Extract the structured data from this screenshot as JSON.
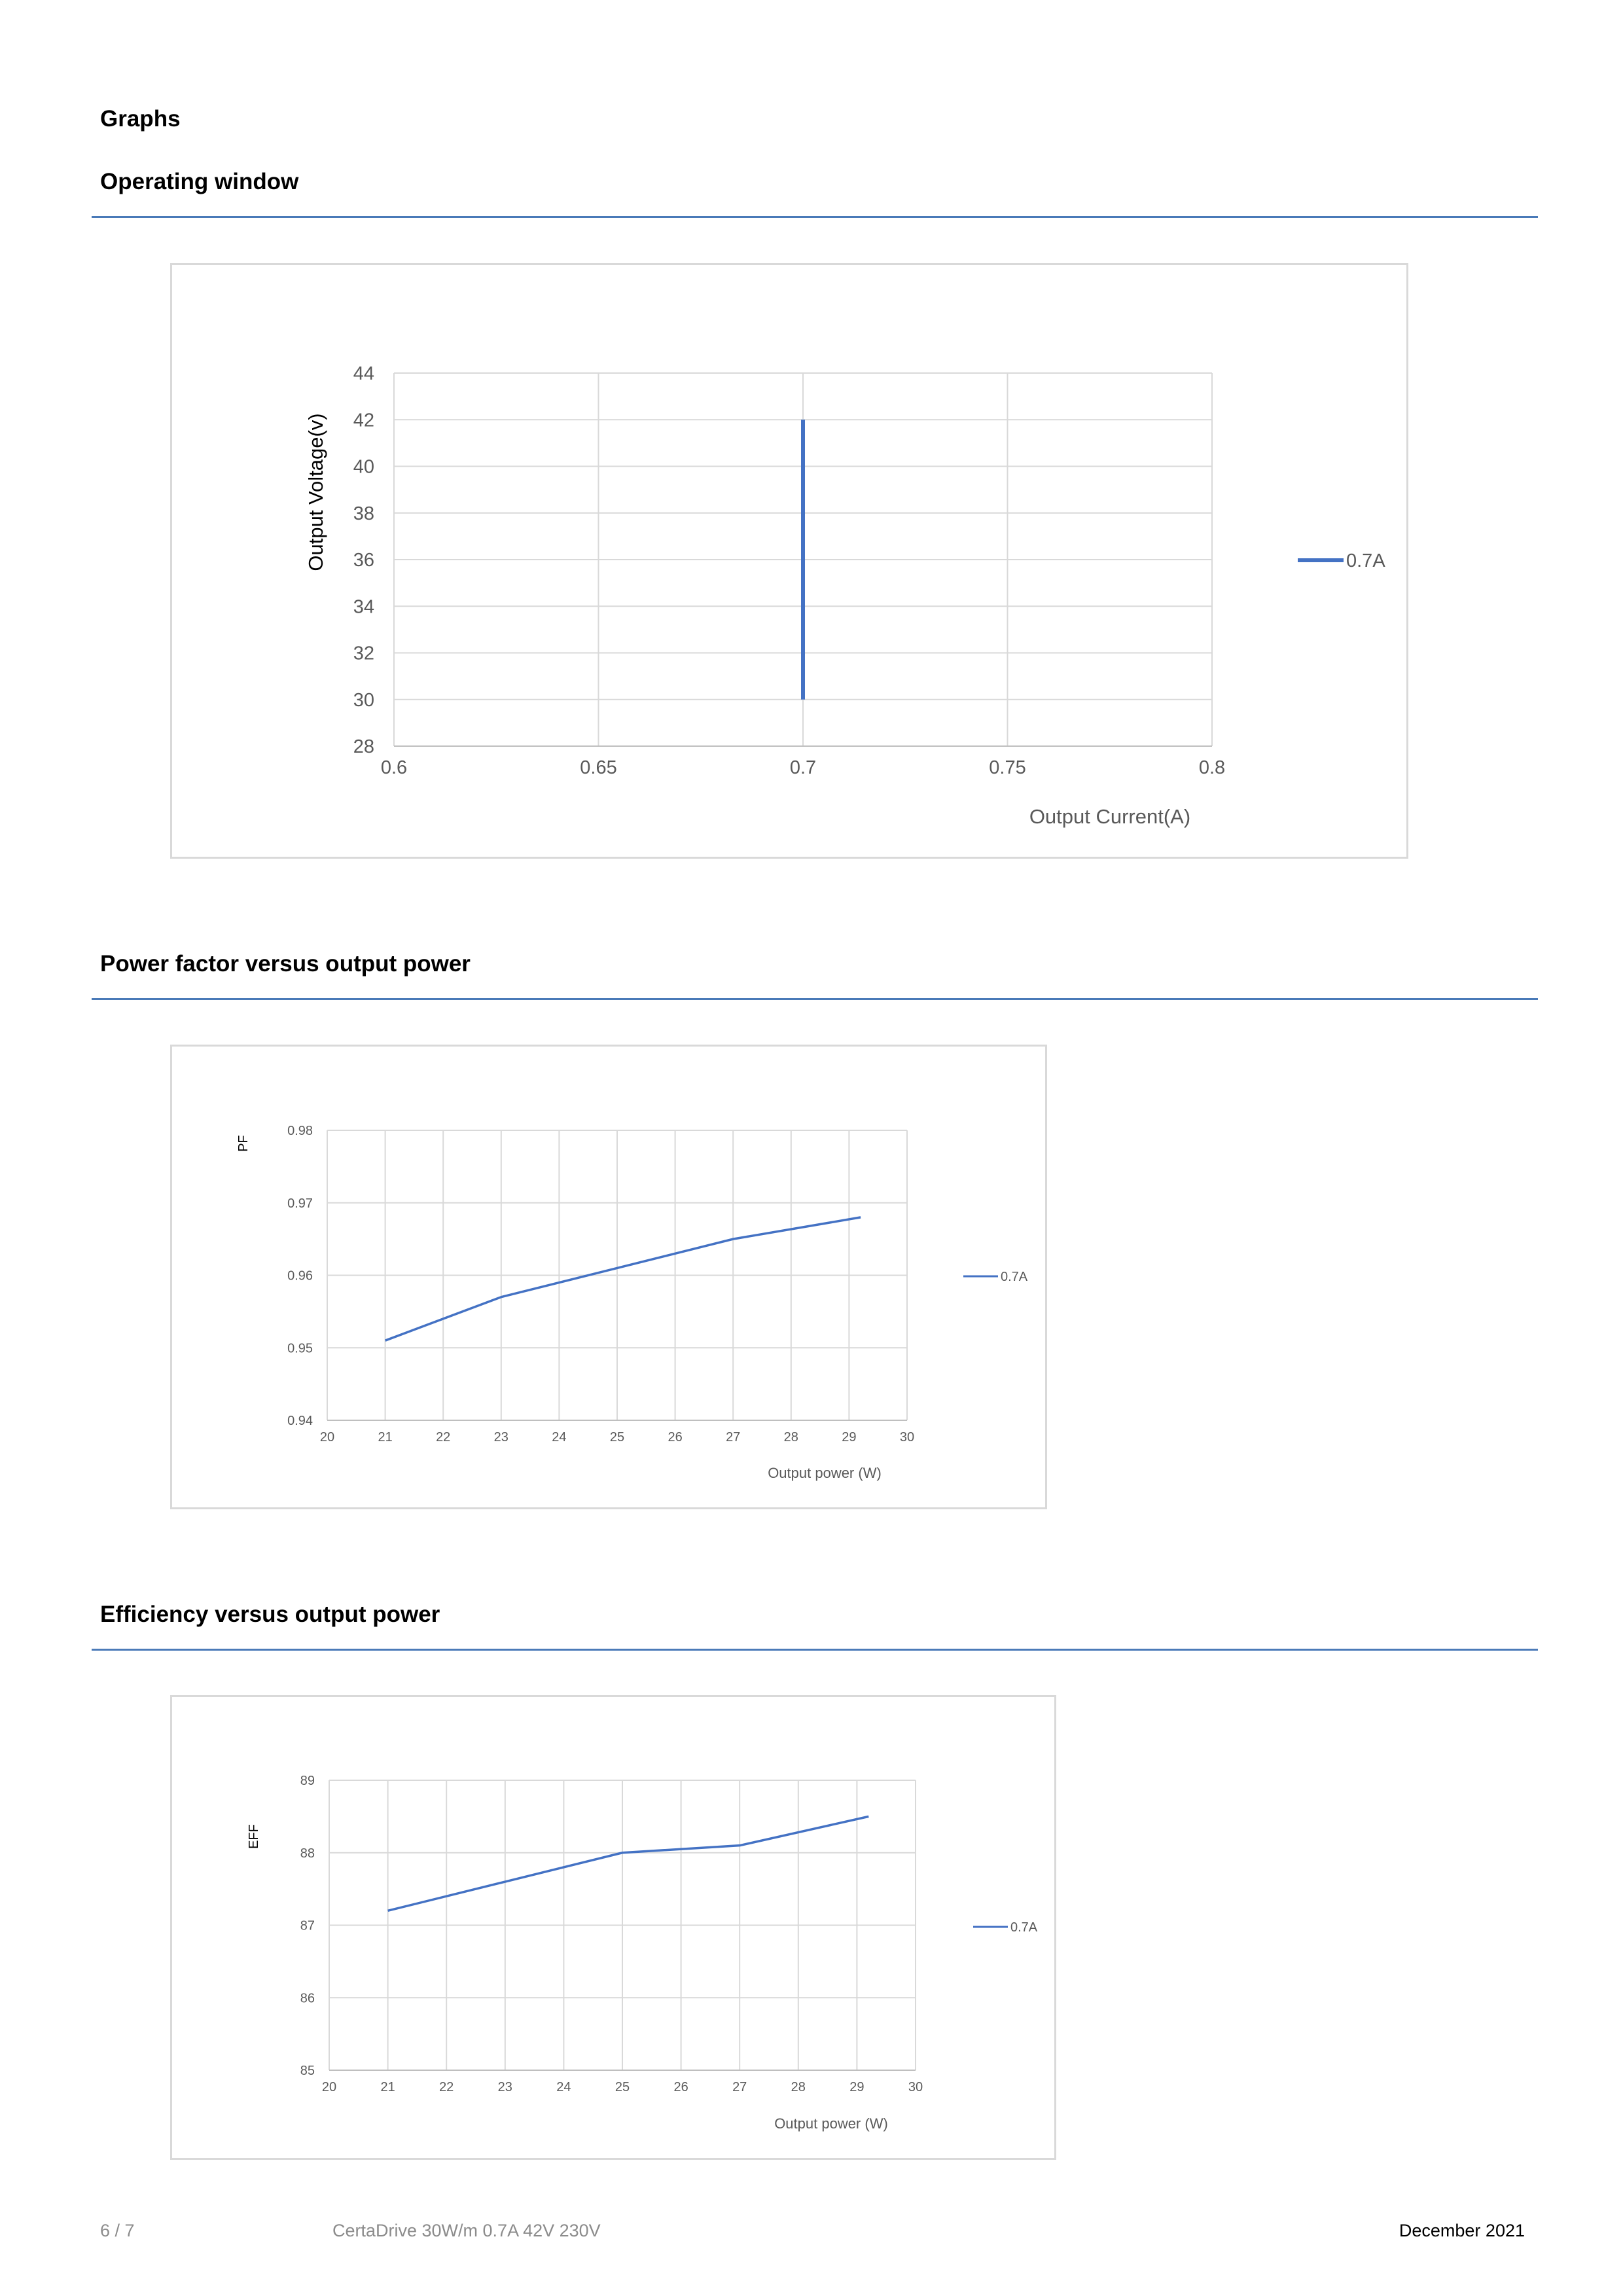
{
  "page": {
    "heading": "Graphs",
    "sections": [
      {
        "title": "Operating window"
      },
      {
        "title": "Power factor versus output power"
      },
      {
        "title": "Efficiency versus output power"
      }
    ]
  },
  "chart_data": [
    {
      "type": "line",
      "title": "",
      "xlabel": "Output Current(A)",
      "ylabel": "Output Voltage(v)",
      "xlim": [
        0.6,
        0.8
      ],
      "ylim": [
        28,
        44
      ],
      "xticks": [
        "0.6",
        "0.65",
        "0.7",
        "0.75",
        "0.8"
      ],
      "yticks": [
        "28",
        "30",
        "32",
        "34",
        "36",
        "38",
        "40",
        "42",
        "44"
      ],
      "grid": true,
      "legend_position": "right",
      "series": [
        {
          "name": "0.7A",
          "color": "#4472c4",
          "points": [
            [
              0.7,
              30
            ],
            [
              0.7,
              42
            ]
          ]
        }
      ]
    },
    {
      "type": "line",
      "title": "",
      "xlabel": "Output power (W)",
      "ylabel": "PF",
      "xlim": [
        20,
        30
      ],
      "ylim": [
        0.94,
        0.98
      ],
      "xticks": [
        "20",
        "21",
        "22",
        "23",
        "24",
        "25",
        "26",
        "27",
        "28",
        "29",
        "30"
      ],
      "yticks": [
        "0.94",
        "0.95",
        "0.96",
        "0.97",
        "0.98"
      ],
      "grid": true,
      "legend_position": "right",
      "series": [
        {
          "name": "0.7A",
          "color": "#4472c4",
          "points": [
            [
              21,
              0.951
            ],
            [
              23,
              0.957
            ],
            [
              25,
              0.961
            ],
            [
              27,
              0.965
            ],
            [
              29.2,
              0.968
            ]
          ]
        }
      ]
    },
    {
      "type": "line",
      "title": "",
      "xlabel": "Output power (W)",
      "ylabel": "EFF",
      "xlim": [
        20,
        30
      ],
      "ylim": [
        85,
        89
      ],
      "xticks": [
        "20",
        "21",
        "22",
        "23",
        "24",
        "25",
        "26",
        "27",
        "28",
        "29",
        "30"
      ],
      "yticks": [
        "85",
        "86",
        "87",
        "88",
        "89"
      ],
      "grid": true,
      "legend_position": "right",
      "series": [
        {
          "name": "0.7A",
          "color": "#4472c4",
          "points": [
            [
              21,
              87.2
            ],
            [
              23,
              87.6
            ],
            [
              25,
              88.0
            ],
            [
              27,
              88.1
            ],
            [
              29.2,
              88.5
            ]
          ]
        }
      ]
    }
  ],
  "footer": {
    "page_number": "6 / 7",
    "product": "CertaDrive 30W/m 0.7A 42V 230V",
    "date": "December 2021"
  }
}
